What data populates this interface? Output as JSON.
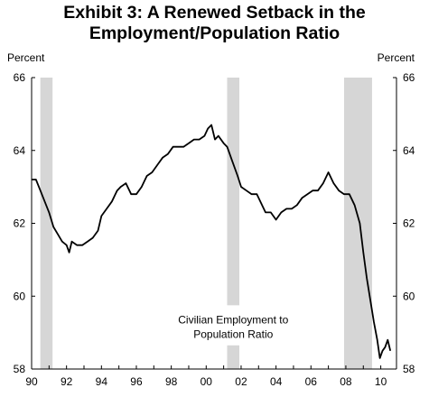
{
  "chart_data": {
    "type": "line",
    "title_line1": "Exhibit 3: A Renewed Setback in the",
    "title_line2": "Employment/Population Ratio",
    "ylabel_left": "Percent",
    "ylabel_right": "Percent",
    "ylim": [
      58,
      66
    ],
    "xlim": [
      1990,
      2010.9
    ],
    "y_ticks": [
      58,
      60,
      62,
      64,
      66
    ],
    "x_ticks": [
      {
        "v": 1990,
        "label": "90"
      },
      {
        "v": 1992,
        "label": "92"
      },
      {
        "v": 1994,
        "label": "94"
      },
      {
        "v": 1996,
        "label": "96"
      },
      {
        "v": 1998,
        "label": "98"
      },
      {
        "v": 2000,
        "label": "00"
      },
      {
        "v": 2002,
        "label": "02"
      },
      {
        "v": 2004,
        "label": "04"
      },
      {
        "v": 2006,
        "label": "06"
      },
      {
        "v": 2008,
        "label": "08"
      },
      {
        "v": 2010,
        "label": "10"
      }
    ],
    "recessions": [
      {
        "start": 1990.5,
        "end": 1991.2
      },
      {
        "start": 2001.2,
        "end": 2001.9
      },
      {
        "start": 2007.9,
        "end": 2009.5
      }
    ],
    "annotation_line1": "Civilian Employment to",
    "annotation_line2": "Population Ratio",
    "series": [
      {
        "points": [
          [
            1990.0,
            63.2
          ],
          [
            1990.25,
            63.2
          ],
          [
            1990.5,
            62.9
          ],
          [
            1990.75,
            62.6
          ],
          [
            1991.0,
            62.3
          ],
          [
            1991.25,
            61.9
          ],
          [
            1991.5,
            61.7
          ],
          [
            1991.75,
            61.5
          ],
          [
            1992.0,
            61.4
          ],
          [
            1992.15,
            61.2
          ],
          [
            1992.3,
            61.5
          ],
          [
            1992.6,
            61.4
          ],
          [
            1992.9,
            61.4
          ],
          [
            1993.2,
            61.5
          ],
          [
            1993.5,
            61.6
          ],
          [
            1993.8,
            61.8
          ],
          [
            1994.0,
            62.2
          ],
          [
            1994.3,
            62.4
          ],
          [
            1994.6,
            62.6
          ],
          [
            1994.9,
            62.9
          ],
          [
            1995.1,
            63.0
          ],
          [
            1995.4,
            63.1
          ],
          [
            1995.7,
            62.8
          ],
          [
            1996.0,
            62.8
          ],
          [
            1996.3,
            63.0
          ],
          [
            1996.6,
            63.3
          ],
          [
            1996.9,
            63.4
          ],
          [
            1997.2,
            63.6
          ],
          [
            1997.5,
            63.8
          ],
          [
            1997.8,
            63.9
          ],
          [
            1998.1,
            64.1
          ],
          [
            1998.4,
            64.1
          ],
          [
            1998.7,
            64.1
          ],
          [
            1999.0,
            64.2
          ],
          [
            1999.3,
            64.3
          ],
          [
            1999.6,
            64.3
          ],
          [
            1999.9,
            64.4
          ],
          [
            2000.1,
            64.6
          ],
          [
            2000.3,
            64.7
          ],
          [
            2000.5,
            64.3
          ],
          [
            2000.7,
            64.4
          ],
          [
            2001.0,
            64.2
          ],
          [
            2001.2,
            64.1
          ],
          [
            2001.5,
            63.7
          ],
          [
            2001.8,
            63.3
          ],
          [
            2002.0,
            63.0
          ],
          [
            2002.3,
            62.9
          ],
          [
            2002.6,
            62.8
          ],
          [
            2002.9,
            62.8
          ],
          [
            2003.1,
            62.6
          ],
          [
            2003.4,
            62.3
          ],
          [
            2003.7,
            62.3
          ],
          [
            2004.0,
            62.1
          ],
          [
            2004.3,
            62.3
          ],
          [
            2004.6,
            62.4
          ],
          [
            2004.9,
            62.4
          ],
          [
            2005.2,
            62.5
          ],
          [
            2005.5,
            62.7
          ],
          [
            2005.8,
            62.8
          ],
          [
            2006.1,
            62.9
          ],
          [
            2006.4,
            62.9
          ],
          [
            2006.7,
            63.1
          ],
          [
            2007.0,
            63.4
          ],
          [
            2007.3,
            63.1
          ],
          [
            2007.6,
            62.9
          ],
          [
            2007.9,
            62.8
          ],
          [
            2008.2,
            62.8
          ],
          [
            2008.5,
            62.5
          ],
          [
            2008.8,
            62.0
          ],
          [
            2009.0,
            61.2
          ],
          [
            2009.2,
            60.5
          ],
          [
            2009.4,
            59.9
          ],
          [
            2009.6,
            59.3
          ],
          [
            2009.8,
            58.8
          ],
          [
            2009.95,
            58.3
          ],
          [
            2010.1,
            58.5
          ],
          [
            2010.25,
            58.6
          ],
          [
            2010.4,
            58.8
          ],
          [
            2010.55,
            58.5
          ]
        ]
      }
    ]
  }
}
